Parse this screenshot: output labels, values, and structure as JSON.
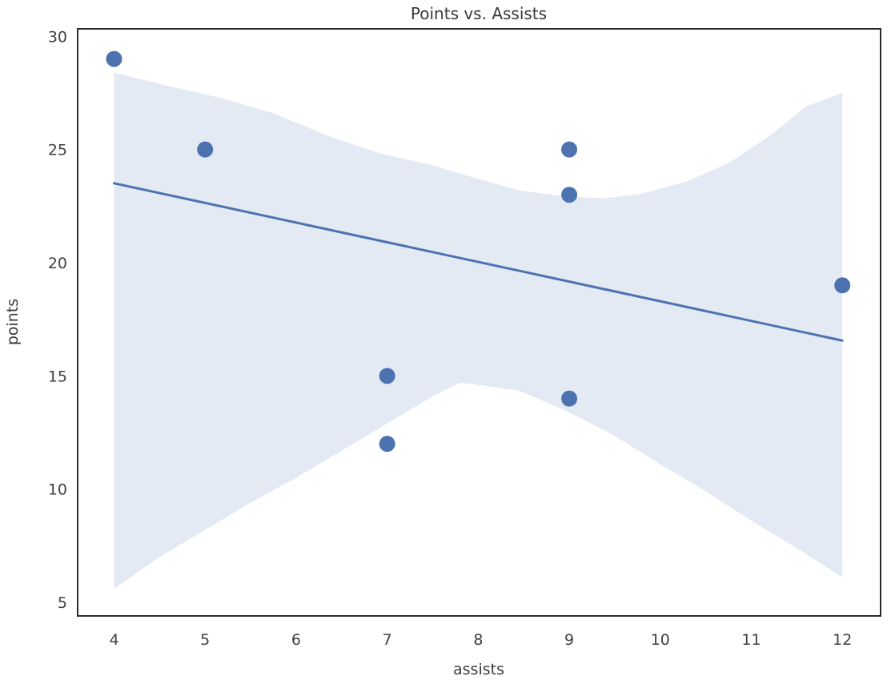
{
  "chart_data": {
    "type": "scatter",
    "title": "Points vs. Assists",
    "xlabel": "assists",
    "ylabel": "points",
    "x_ticks": [
      4,
      5,
      6,
      7,
      8,
      9,
      10,
      11,
      12
    ],
    "y_ticks": [
      5,
      10,
      15,
      20,
      25,
      30
    ],
    "xlim": [
      3.6,
      12.42
    ],
    "ylim": [
      4.4,
      30.33
    ],
    "grid": false,
    "legend": "none",
    "points": [
      [
        4,
        29
      ],
      [
        5,
        25
      ],
      [
        7,
        15
      ],
      [
        7,
        12
      ],
      [
        9,
        25
      ],
      [
        9,
        23
      ],
      [
        9,
        14
      ],
      [
        12,
        19
      ]
    ],
    "regression_line": {
      "x1": 4,
      "y1": 23.51,
      "x2": 12,
      "y2": 16.56
    },
    "ci_band": {
      "upper": [
        [
          4,
          28.4
        ],
        [
          4.6,
          27.8
        ],
        [
          5.15,
          27.3
        ],
        [
          5.75,
          26.6
        ],
        [
          6.35,
          25.6
        ],
        [
          6.9,
          24.85
        ],
        [
          7.5,
          24.3
        ],
        [
          8.0,
          23.7
        ],
        [
          8.45,
          23.2
        ],
        [
          9.0,
          22.9
        ],
        [
          9.4,
          22.85
        ],
        [
          9.8,
          23.05
        ],
        [
          10.3,
          23.6
        ],
        [
          10.75,
          24.4
        ],
        [
          11.2,
          25.6
        ],
        [
          11.6,
          26.9
        ],
        [
          12,
          27.5
        ]
      ],
      "lower": [
        [
          4,
          5.6
        ],
        [
          4.5,
          7.0
        ],
        [
          5,
          8.2
        ],
        [
          5.5,
          9.4
        ],
        [
          6,
          10.5
        ],
        [
          6.5,
          11.7
        ],
        [
          7,
          12.9
        ],
        [
          7.5,
          14.1
        ],
        [
          7.8,
          14.7
        ],
        [
          8.1,
          14.55
        ],
        [
          8.45,
          14.35
        ],
        [
          9,
          13.4
        ],
        [
          9.5,
          12.35
        ],
        [
          10,
          11.1
        ],
        [
          10.5,
          9.9
        ],
        [
          11,
          8.6
        ],
        [
          11.5,
          7.4
        ],
        [
          12,
          6.1
        ]
      ]
    },
    "colors": {
      "point": "#4c72b0",
      "line": "#4c72b0",
      "band": "#e4eaf4",
      "spine": "#2b2b2b",
      "text": "#3a3a3a"
    },
    "marker_radius": 10,
    "line_width": 3
  }
}
